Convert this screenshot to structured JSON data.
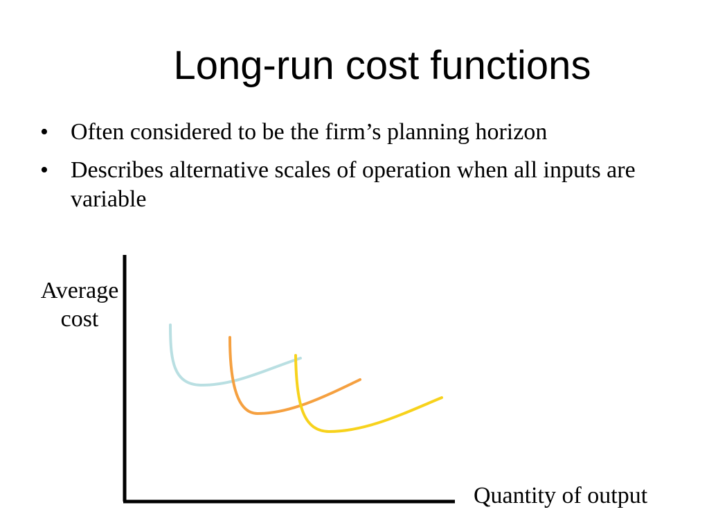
{
  "slide": {
    "title": "Long-run cost functions",
    "bullets": [
      "Often considered to be the firm’s planning horizon",
      "Describes alternative scales of operation when all inputs are variable"
    ]
  },
  "diagram": {
    "y_label_line1": "Average",
    "y_label_line2": "cost",
    "x_label": "Quantity of output",
    "curves": [
      {
        "color": "#b9dfe2"
      },
      {
        "color": "#f5a040"
      },
      {
        "color": "#f7d21c"
      }
    ]
  }
}
